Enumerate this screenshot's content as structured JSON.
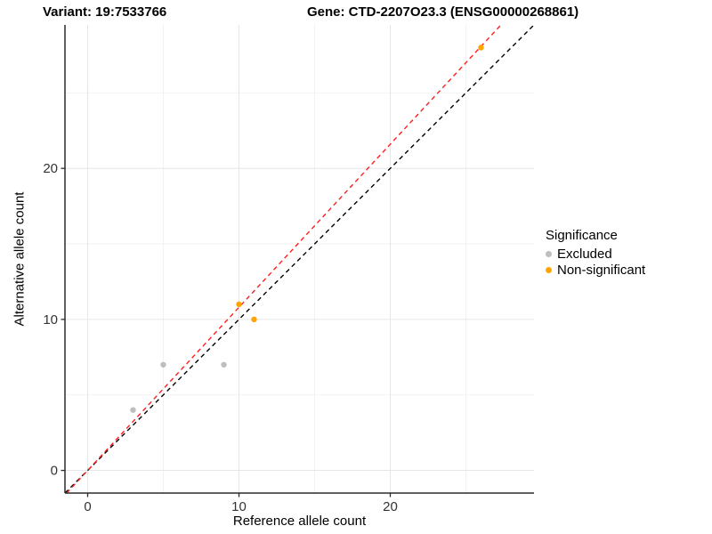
{
  "header": {
    "variant_title": "Variant: 19:7533766",
    "gene_title": "Gene: CTD-2207O23.3 (ENSG00000268861)"
  },
  "chart_data": {
    "type": "scatter",
    "xlabel": "Reference allele count",
    "ylabel": "Alternative allele count",
    "x_range": [
      -1.5,
      29.5
    ],
    "y_range": [
      -1.5,
      29.5
    ],
    "x_ticks": [
      0,
      10,
      20
    ],
    "y_ticks": [
      0,
      10,
      20
    ],
    "x_minor_ticks": [
      5,
      15,
      25
    ],
    "y_minor_ticks": [
      5,
      15,
      25
    ],
    "grid": true,
    "series": [
      {
        "name": "Excluded",
        "color": "#BEBEBE",
        "points": [
          [
            3,
            4
          ],
          [
            5,
            7
          ],
          [
            9,
            7
          ]
        ]
      },
      {
        "name": "Non-significant",
        "color": "#FFA500",
        "points": [
          [
            10,
            11
          ],
          [
            11,
            10
          ],
          [
            26,
            28
          ]
        ]
      }
    ],
    "reference_lines": [
      {
        "name": "identity",
        "slope": 1.0,
        "intercept": 0,
        "color": "#000000",
        "style": "dashed"
      },
      {
        "name": "fitted",
        "slope": 1.08,
        "intercept": 0,
        "color": "#FF1E1E",
        "style": "dashed"
      }
    ],
    "legend": {
      "title": "Significance",
      "position": "right"
    },
    "style": {
      "axis_line_color": "#2b2b2b",
      "tick_label_color": "#333333",
      "major_grid_color": "#e6e6e6",
      "minor_grid_color": "#f2f2f2"
    }
  }
}
